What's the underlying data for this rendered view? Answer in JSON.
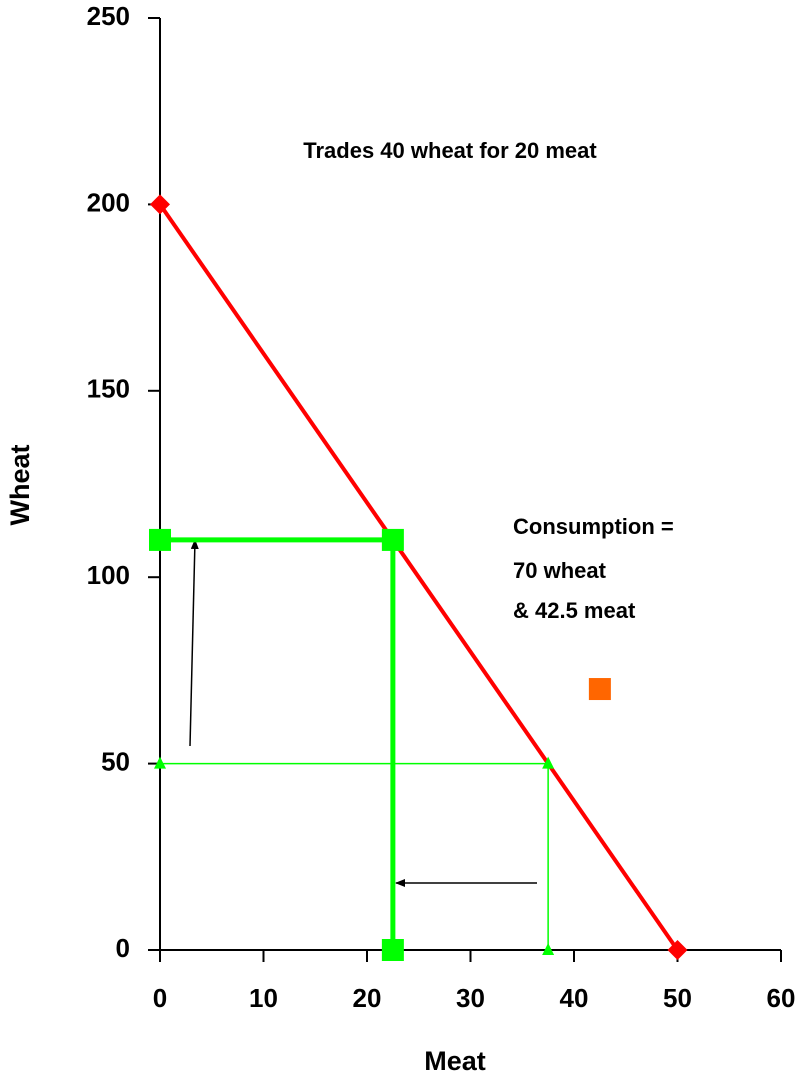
{
  "chart_data": {
    "type": "line",
    "x_label": "Meat",
    "y_label": "Wheat",
    "xlim": [
      0,
      60
    ],
    "xticks": [
      0,
      10,
      20,
      30,
      40,
      50,
      60
    ],
    "ylim": [
      0,
      250
    ],
    "yticks": [
      0,
      50,
      100,
      150,
      200,
      250
    ],
    "grid": false,
    "annotations": [
      "Trades 40 wheat for 20 meat",
      "Consumption =",
      "70 wheat",
      "& 42.5 meat"
    ],
    "series": [
      {
        "x": [
          0,
          50
        ],
        "values": [
          200,
          0
        ],
        "color": "#ff0000",
        "marker": "diamond",
        "line": true
      },
      {
        "x": [
          0,
          37.5,
          37.5
        ],
        "values": [
          50,
          50,
          0
        ],
        "color": "#00ff00",
        "marker": "triangle",
        "line": true
      },
      {
        "x": [
          0,
          22.5,
          22.5
        ],
        "values": [
          110,
          110,
          0
        ],
        "color": "#00ff00",
        "marker": "square",
        "line": true
      },
      {
        "x": [
          42.5
        ],
        "values": [
          70
        ],
        "color": "#ff6600",
        "marker": "square",
        "line": false
      }
    ]
  }
}
